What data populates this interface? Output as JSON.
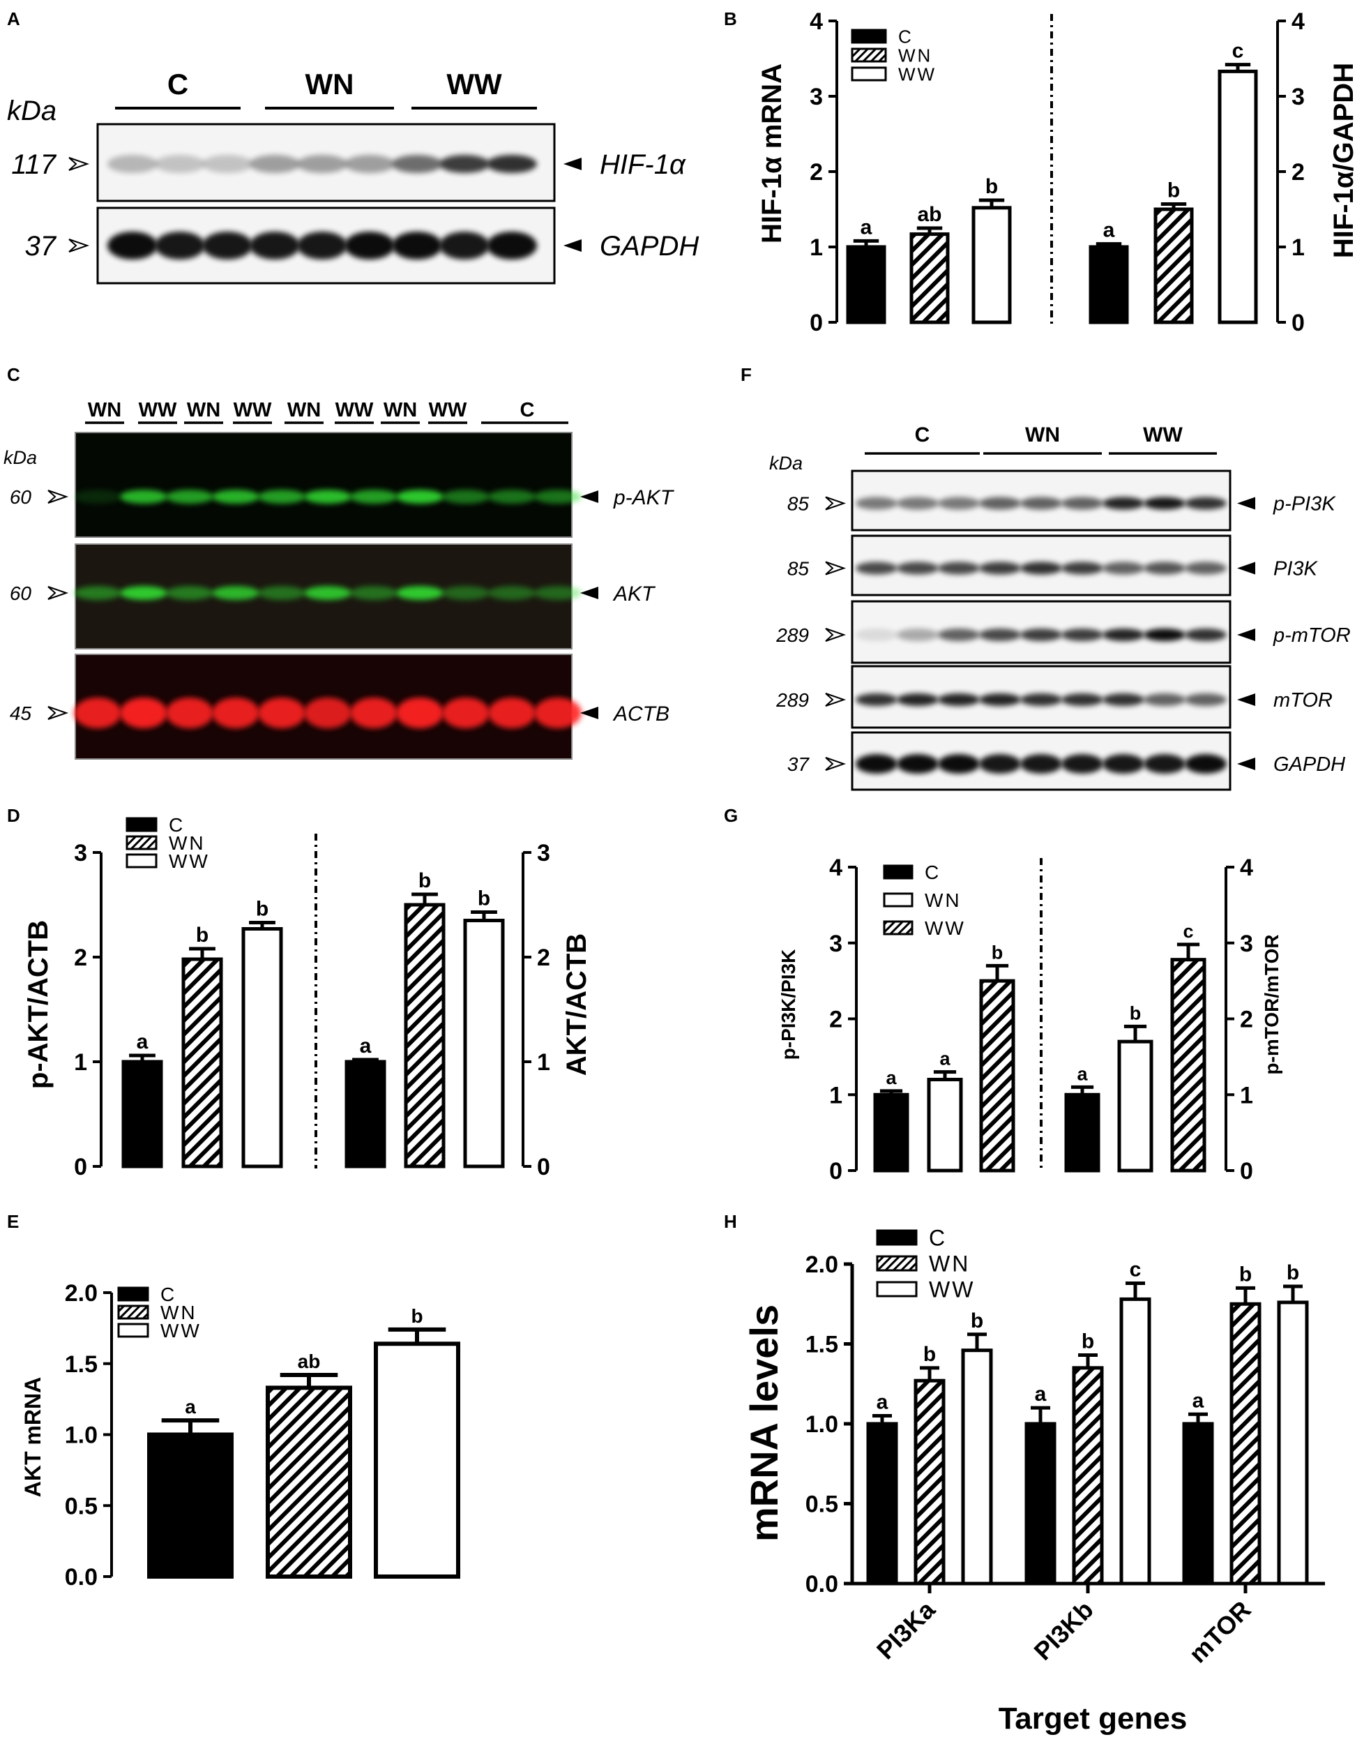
{
  "colors": {
    "black": "#000000",
    "white": "#ffffff",
    "green_band": "#33dd33",
    "red_band": "#ff2020",
    "blot_bg": "#f2f2f2"
  },
  "panels": {
    "A": {
      "letter": "A",
      "kda_label": "kDa",
      "groups": [
        "C",
        "WN",
        "WW"
      ],
      "rows": [
        {
          "kda": "117",
          "label": "HIF-1α",
          "intensities": [
            0.25,
            0.2,
            0.2,
            0.35,
            0.35,
            0.35,
            0.55,
            0.75,
            0.8
          ]
        },
        {
          "kda": "37",
          "label": "GAPDH",
          "intensities": [
            0.95,
            0.9,
            0.9,
            0.9,
            0.9,
            0.95,
            0.95,
            0.9,
            0.95
          ]
        }
      ]
    },
    "C": {
      "letter": "C",
      "kda_label": "kDa",
      "lanes": [
        "WN",
        "WW",
        "WN",
        "WW",
        "WN",
        "WW",
        "WN",
        "WW",
        "C"
      ],
      "rows": [
        {
          "kda": "60",
          "label": "p-AKT",
          "band_color": "#33dd33",
          "intensities": [
            0.15,
            0.8,
            0.7,
            0.8,
            0.7,
            0.85,
            0.7,
            0.9,
            0.5,
            0.5,
            0.5
          ]
        },
        {
          "kda": "60",
          "label": "AKT",
          "band_color": "#33dd33",
          "intensities": [
            0.5,
            0.9,
            0.5,
            0.8,
            0.45,
            0.85,
            0.45,
            0.9,
            0.4,
            0.4,
            0.4
          ]
        },
        {
          "kda": "45",
          "label": "ACTB",
          "band_color": "#ff2020",
          "intensities": [
            0.9,
            0.95,
            0.9,
            0.9,
            0.9,
            0.85,
            0.9,
            0.95,
            0.9,
            0.9,
            0.9
          ]
        }
      ]
    },
    "F": {
      "letter": "F",
      "kda_label": "kDa",
      "groups": [
        "C",
        "WN",
        "WW"
      ],
      "rows": [
        {
          "kda": "85",
          "label": "p-PI3K",
          "intensities": [
            0.5,
            0.5,
            0.5,
            0.6,
            0.6,
            0.6,
            0.85,
            0.9,
            0.8
          ]
        },
        {
          "kda": "85",
          "label": "PI3K",
          "intensities": [
            0.7,
            0.7,
            0.7,
            0.75,
            0.8,
            0.75,
            0.6,
            0.65,
            0.6
          ]
        },
        {
          "kda": "289",
          "label": "p-mTOR",
          "intensities": [
            0.1,
            0.3,
            0.6,
            0.7,
            0.75,
            0.75,
            0.85,
            0.95,
            0.8
          ]
        },
        {
          "kda": "289",
          "label": "mTOR",
          "intensities": [
            0.8,
            0.85,
            0.85,
            0.85,
            0.8,
            0.8,
            0.8,
            0.6,
            0.6
          ]
        },
        {
          "kda": "37",
          "label": "GAPDH",
          "intensities": [
            0.95,
            0.95,
            0.95,
            0.9,
            0.9,
            0.9,
            0.9,
            0.9,
            0.95
          ]
        }
      ]
    }
  },
  "legend_labels": {
    "c": "C",
    "wn": "WN",
    "ww": "WW"
  },
  "chart_data": [
    {
      "panel": "B",
      "type": "bar",
      "left": {
        "ylabel": "HIF-1α mRNA",
        "ylim": [
          0,
          4
        ],
        "ticks": [
          "0",
          "1",
          "2",
          "3",
          "4"
        ],
        "bars": [
          {
            "group": "C",
            "value": 1.0,
            "error": 0.08,
            "letter": "a"
          },
          {
            "group": "WN",
            "value": 1.17,
            "error": 0.08,
            "letter": "ab"
          },
          {
            "group": "WW",
            "value": 1.52,
            "error": 0.1,
            "letter": "b"
          }
        ]
      },
      "right": {
        "ylabel": "HIF-1α/GAPDH",
        "ylim": [
          0,
          4
        ],
        "ticks": [
          "0",
          "1",
          "2",
          "3",
          "4"
        ],
        "bars": [
          {
            "group": "C",
            "value": 1.0,
            "error": 0.04,
            "letter": "a"
          },
          {
            "group": "WN",
            "value": 1.5,
            "error": 0.07,
            "letter": "b"
          },
          {
            "group": "WW",
            "value": 3.33,
            "error": 0.09,
            "letter": "c"
          }
        ]
      },
      "legend": [
        "C",
        "WN",
        "WW"
      ]
    },
    {
      "panel": "D",
      "type": "bar",
      "left": {
        "ylabel": "p-AKT/ACTB",
        "ylim": [
          0,
          3
        ],
        "ticks": [
          "0",
          "1",
          "2",
          "3"
        ],
        "bars": [
          {
            "group": "C",
            "value": 1.0,
            "error": 0.06,
            "letter": "a"
          },
          {
            "group": "WN",
            "value": 1.98,
            "error": 0.1,
            "letter": "b"
          },
          {
            "group": "WW",
            "value": 2.27,
            "error": 0.06,
            "letter": "b"
          }
        ]
      },
      "right": {
        "ylabel": "AKT/ACTB",
        "ylim": [
          0,
          3
        ],
        "ticks": [
          "0",
          "1",
          "2",
          "3"
        ],
        "bars": [
          {
            "group": "C",
            "value": 1.0,
            "error": 0.02,
            "letter": "a"
          },
          {
            "group": "WN",
            "value": 2.5,
            "error": 0.1,
            "letter": "b"
          },
          {
            "group": "WW",
            "value": 2.35,
            "error": 0.08,
            "letter": "b"
          }
        ]
      },
      "legend": [
        "C",
        "WN",
        "WW"
      ]
    },
    {
      "panel": "E",
      "type": "bar",
      "ylabel": "AKT mRNA",
      "ylim": [
        0,
        2.0
      ],
      "ticks": [
        "0.0",
        "0.5",
        "1.0",
        "1.5",
        "2.0"
      ],
      "bars": [
        {
          "group": "C",
          "value": 1.0,
          "error": 0.1,
          "letter": "a"
        },
        {
          "group": "WN",
          "value": 1.33,
          "error": 0.09,
          "letter": "ab"
        },
        {
          "group": "WW",
          "value": 1.64,
          "error": 0.1,
          "letter": "b"
        }
      ],
      "legend": [
        "C",
        "WN",
        "WW"
      ]
    },
    {
      "panel": "G",
      "type": "bar",
      "left": {
        "ylabel": "p-PI3K/PI3K",
        "ylim": [
          0,
          4
        ],
        "ticks": [
          "0",
          "1",
          "2",
          "3",
          "4"
        ],
        "bars": [
          {
            "group": "C",
            "value": 1.0,
            "error": 0.05,
            "letter": "a"
          },
          {
            "group": "WN",
            "value": 1.2,
            "error": 0.1,
            "letter": "a"
          },
          {
            "group": "WW",
            "value": 2.5,
            "error": 0.2,
            "letter": "b"
          }
        ]
      },
      "right": {
        "ylabel": "p-mTOR/mTOR",
        "ylim": [
          0,
          4
        ],
        "ticks": [
          "0",
          "1",
          "2",
          "3",
          "4"
        ],
        "bars": [
          {
            "group": "C",
            "value": 1.0,
            "error": 0.1,
            "letter": "a"
          },
          {
            "group": "WN",
            "value": 1.7,
            "error": 0.2,
            "letter": "b"
          },
          {
            "group": "WW",
            "value": 2.78,
            "error": 0.2,
            "letter": "c"
          }
        ]
      },
      "legend": [
        "C",
        "WN",
        "WW"
      ],
      "legend_fills": [
        "black",
        "white",
        "hatch"
      ]
    },
    {
      "panel": "H",
      "type": "bar",
      "ylabel": "mRNA levels",
      "xlabel": "Target genes",
      "ylim": [
        0,
        2.0
      ],
      "ticks": [
        "0.0",
        "0.5",
        "1.0",
        "1.5",
        "2.0"
      ],
      "categories": [
        "PI3Ka",
        "PI3Kb",
        "mTOR"
      ],
      "series": [
        {
          "name": "C",
          "values": [
            1.0,
            1.0,
            1.0
          ],
          "errors": [
            0.05,
            0.1,
            0.06
          ],
          "letters": [
            "a",
            "a",
            "a"
          ]
        },
        {
          "name": "WN",
          "values": [
            1.27,
            1.35,
            1.75
          ],
          "errors": [
            0.08,
            0.08,
            0.1
          ],
          "letters": [
            "b",
            "b",
            "b"
          ]
        },
        {
          "name": "WW",
          "values": [
            1.46,
            1.78,
            1.76
          ],
          "errors": [
            0.1,
            0.1,
            0.1
          ],
          "letters": [
            "b",
            "c",
            "b"
          ]
        }
      ],
      "legend": [
        "C",
        "WN",
        "WW"
      ]
    }
  ]
}
